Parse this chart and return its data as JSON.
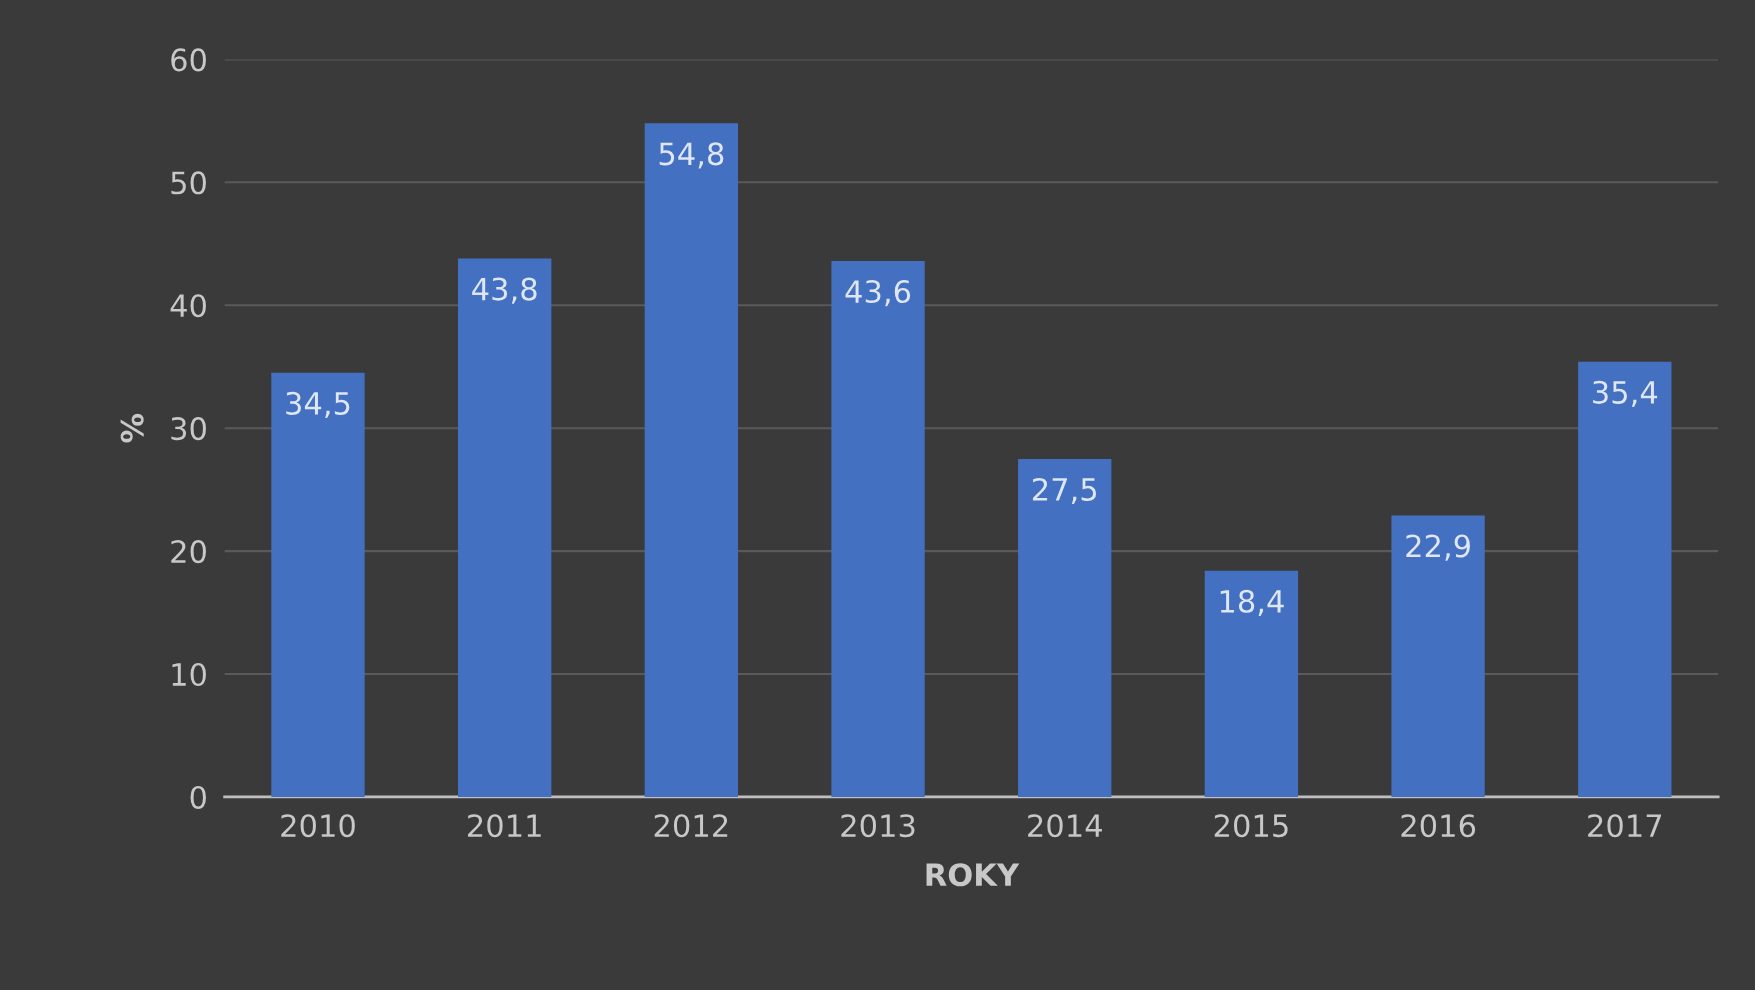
{
  "chart_data": {
    "type": "bar",
    "xlabel": "ROKY",
    "ylabel": "%",
    "categories": [
      "2010",
      "2011",
      "2012",
      "2013",
      "2014",
      "2015",
      "2016",
      "2017"
    ],
    "values": [
      34.5,
      43.8,
      54.8,
      43.6,
      27.5,
      18.4,
      22.9,
      35.4
    ],
    "value_labels": [
      "34,5",
      "43,8",
      "54,8",
      "43,6",
      "27,5",
      "18,4",
      "22,9",
      "35,4"
    ],
    "color": "#4470c2",
    "ylim": [
      0,
      60
    ],
    "yticks": [
      0,
      10,
      20,
      30,
      40,
      50,
      60
    ],
    "grid": "y",
    "legend": false
  }
}
